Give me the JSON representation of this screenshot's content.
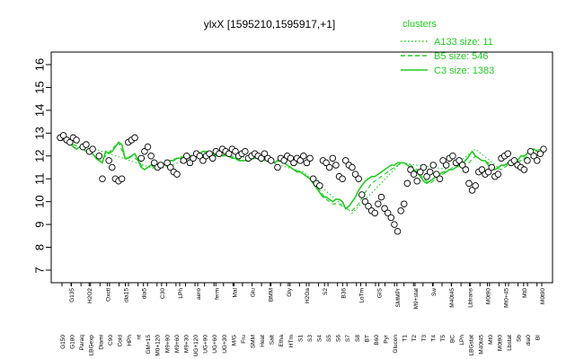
{
  "chart_data": {
    "type": "line",
    "title": "ylxX [1595210,1595917,+1]",
    "xlabel": "",
    "ylabel": "",
    "ylim": [
      7,
      16
    ],
    "yticks": [
      7,
      8,
      9,
      10,
      11,
      12,
      13,
      14,
      15,
      16
    ],
    "grid": false,
    "legend_placement": "top-right",
    "legend_title": "clusters",
    "legend": [
      {
        "label": "A133 size: 11",
        "style": "dotted",
        "color": "#22cc22"
      },
      {
        "label": "B5 size: 546",
        "style": "dashed",
        "color": "#22cc22"
      },
      {
        "label": "C3 size: 1383",
        "style": "solid",
        "color": "#22cc22"
      }
    ],
    "tick_labels_row1": [
      "G150",
      "G180",
      "Paraq",
      "LBGexp",
      "Diami",
      "C90",
      "Cold",
      "HPh",
      "nt",
      "GM+15",
      "M0+120",
      "M9+90",
      "M9+60",
      "M9+30",
      "UG+120",
      "UG+90",
      "UG+60",
      "UG+30",
      "M/G",
      "Fru",
      "SMM",
      "Heat",
      "Salt",
      "Etha",
      "HTm",
      "S1",
      "S3",
      "S4",
      "S5",
      "S6",
      "S7",
      "S8",
      "BT",
      "B60",
      "Pyr",
      "Glucon",
      "T1",
      "T2",
      "T3",
      "T4",
      "T5",
      "BC",
      "LPh",
      "LBGstat",
      "M40t45",
      "Mt0",
      "M0t90",
      "Lbstat",
      "Sb",
      "dia0",
      "BI"
    ],
    "tick_labels_row2": [
      "G135",
      "H2O2",
      "Oxctl",
      "dia15",
      "dia5",
      "C30",
      "LPh",
      "aero",
      "ferm",
      "Mal",
      "Glu",
      "BMM",
      "Gly",
      "H2Oa",
      "S2",
      "B36",
      "LoTm",
      "GIS",
      "SMMPr",
      "M9+stat",
      "Sw",
      "M40t45",
      "Lbtrans",
      "M0t90",
      "Mt0+45",
      "Mt0",
      "M0t90"
    ],
    "series": [
      {
        "style": "solid",
        "x": [
          0,
          1,
          2,
          3,
          4,
          5,
          6,
          7,
          8,
          9,
          10,
          11,
          12,
          13,
          14,
          15,
          16,
          17,
          18,
          19,
          20,
          21,
          22,
          23,
          24,
          25,
          26,
          27,
          28,
          29,
          30,
          31,
          32,
          33,
          34,
          35,
          36,
          37,
          38,
          39,
          40,
          41,
          42,
          43,
          44,
          45,
          46,
          47,
          48,
          49,
          50,
          51,
          52,
          53,
          54,
          55,
          56,
          57,
          58,
          59,
          60,
          61,
          62,
          63,
          64,
          65,
          66,
          67,
          68,
          69,
          70,
          71,
          72,
          73,
          74,
          75,
          76,
          77,
          78,
          79,
          80,
          81,
          82,
          83,
          84,
          85,
          86,
          87,
          88,
          89,
          90,
          91,
          92,
          93,
          94,
          95,
          96,
          97,
          98,
          99,
          100,
          101,
          102,
          103,
          104,
          105,
          106,
          107,
          108,
          109,
          110,
          111,
          112,
          113,
          114,
          115,
          116,
          117,
          118,
          119,
          120,
          121,
          122,
          123,
          124,
          125,
          126,
          127,
          128,
          129,
          130,
          131,
          132,
          133,
          134,
          135,
          136,
          137,
          138,
          139,
          140,
          141,
          142,
          143,
          144,
          145,
          146,
          147,
          148,
          149
        ],
        "y": [
          12.7,
          12.7,
          12.6,
          12.6,
          12.4,
          12.3,
          12.4,
          12.3,
          12.2,
          12.1,
          12.1,
          11.9,
          11.8,
          11.7,
          12.2,
          12.1,
          12.2,
          12.4,
          12.6,
          12.5,
          11.9,
          11.9,
          12.0,
          12.1,
          11.8,
          11.5,
          11.4,
          11.5,
          11.6,
          11.5,
          11.4,
          11.6,
          11.6,
          11.7,
          11.8,
          11.8,
          11.9,
          11.9,
          11.9,
          12.0,
          11.9,
          12.0,
          12.0,
          12.1,
          12.2,
          12.2,
          12.1,
          12.1,
          12.0,
          12.1,
          12.0,
          12.1,
          12.0,
          11.9,
          11.9,
          11.8,
          11.8,
          11.8,
          11.8,
          11.9,
          11.9,
          11.9,
          11.8,
          11.9,
          11.8,
          11.8,
          11.7,
          11.8,
          11.8,
          11.7,
          11.6,
          11.5,
          11.4,
          11.3,
          11.3,
          11.2,
          11.1,
          11.0,
          10.8,
          10.6,
          10.4,
          10.2,
          10.2,
          10.1,
          10.0,
          10.1,
          10.1,
          10.0,
          9.7,
          9.8,
          10.0,
          10.2,
          10.5,
          10.7,
          10.9,
          11.0,
          11.1,
          11.1,
          11.2,
          11.3,
          11.4,
          11.5,
          11.6,
          11.6,
          11.7,
          11.7,
          11.7,
          11.6,
          11.5,
          11.4,
          11.3,
          11.1,
          10.9,
          10.8,
          10.9,
          11.0,
          11.1,
          11.2,
          11.3,
          11.3,
          11.4,
          11.4,
          11.5,
          11.6,
          11.7,
          11.8,
          12.0,
          12.2,
          12.0,
          11.9,
          11.8,
          11.8,
          11.6,
          11.5,
          11.4,
          11.5,
          11.6,
          11.6,
          11.7,
          11.7,
          11.8,
          11.8,
          12.0,
          12.0,
          12.1,
          12.2,
          12.3,
          12.2,
          12.1,
          12.1
        ]
      },
      {
        "style": "dashed",
        "x": [
          0,
          2,
          4,
          6,
          8,
          10,
          12,
          14,
          16,
          18,
          20,
          22,
          24,
          26,
          28,
          30,
          32,
          34,
          36,
          38,
          40,
          42,
          44,
          46,
          48,
          50,
          52,
          54,
          56,
          58,
          60,
          62,
          64,
          66,
          68,
          70,
          72,
          74,
          76,
          78,
          80,
          82,
          84,
          86,
          88,
          90,
          92,
          94,
          96,
          98,
          100,
          102,
          104,
          106,
          108,
          110,
          112,
          114,
          116,
          118,
          120,
          122,
          124,
          126,
          128,
          130,
          132,
          134,
          136,
          138,
          140,
          142,
          144,
          146,
          148,
          149
        ],
        "y": [
          12.8,
          12.7,
          12.5,
          12.4,
          12.2,
          12.1,
          11.8,
          12.0,
          12.3,
          12.6,
          11.9,
          12.0,
          11.8,
          11.4,
          11.6,
          11.4,
          11.6,
          11.8,
          11.9,
          12.0,
          12.0,
          12.1,
          12.2,
          12.1,
          12.0,
          12.0,
          12.0,
          11.9,
          11.8,
          11.8,
          11.9,
          11.9,
          11.8,
          11.7,
          11.8,
          11.6,
          11.4,
          11.3,
          11.1,
          10.9,
          10.5,
          10.1,
          9.9,
          9.9,
          9.7,
          9.6,
          9.9,
          10.4,
          10.8,
          11.0,
          11.2,
          11.4,
          11.6,
          11.7,
          11.6,
          11.4,
          11.0,
          10.8,
          11.0,
          11.2,
          11.4,
          11.5,
          11.6,
          11.7,
          12.0,
          11.8,
          11.7,
          11.5,
          11.4,
          11.6,
          11.7,
          11.8,
          12.0,
          12.2,
          12.3,
          12.1
        ]
      },
      {
        "style": "dotted",
        "x": [
          0,
          15,
          30,
          45,
          60,
          75,
          90,
          105,
          120,
          128,
          135,
          149
        ],
        "y": [
          12.8,
          12.1,
          11.4,
          12.1,
          11.9,
          11.3,
          9.5,
          11.7,
          11.4,
          12.3,
          11.5,
          12.1
        ]
      }
    ],
    "points": [
      {
        "x": 0,
        "y": 12.8
      },
      {
        "x": 1,
        "y": 12.9
      },
      {
        "x": 2,
        "y": 12.7
      },
      {
        "x": 3,
        "y": 12.6
      },
      {
        "x": 4,
        "y": 12.8
      },
      {
        "x": 5,
        "y": 12.7
      },
      {
        "x": 7,
        "y": 12.4
      },
      {
        "x": 8,
        "y": 12.5
      },
      {
        "x": 9,
        "y": 12.2
      },
      {
        "x": 10,
        "y": 12.3
      },
      {
        "x": 12,
        "y": 12.0
      },
      {
        "x": 13,
        "y": 11.0
      },
      {
        "x": 15,
        "y": 11.8
      },
      {
        "x": 16,
        "y": 11.5
      },
      {
        "x": 17,
        "y": 11.0
      },
      {
        "x": 18,
        "y": 10.9
      },
      {
        "x": 19,
        "y": 11.0
      },
      {
        "x": 21,
        "y": 12.6
      },
      {
        "x": 22,
        "y": 12.7
      },
      {
        "x": 23,
        "y": 12.8
      },
      {
        "x": 25,
        "y": 11.9
      },
      {
        "x": 26,
        "y": 12.2
      },
      {
        "x": 27,
        "y": 12.4
      },
      {
        "x": 28,
        "y": 12.0
      },
      {
        "x": 29,
        "y": 11.7
      },
      {
        "x": 30,
        "y": 11.5
      },
      {
        "x": 31,
        "y": 11.6
      },
      {
        "x": 33,
        "y": 11.7
      },
      {
        "x": 34,
        "y": 11.5
      },
      {
        "x": 35,
        "y": 11.3
      },
      {
        "x": 36,
        "y": 11.2
      },
      {
        "x": 38,
        "y": 11.8
      },
      {
        "x": 39,
        "y": 12.0
      },
      {
        "x": 40,
        "y": 11.7
      },
      {
        "x": 41,
        "y": 11.9
      },
      {
        "x": 42,
        "y": 12.1
      },
      {
        "x": 43,
        "y": 12.0
      },
      {
        "x": 44,
        "y": 11.8
      },
      {
        "x": 45,
        "y": 12.0
      },
      {
        "x": 46,
        "y": 12.1
      },
      {
        "x": 47,
        "y": 11.9
      },
      {
        "x": 48,
        "y": 12.2
      },
      {
        "x": 49,
        "y": 12.1
      },
      {
        "x": 50,
        "y": 12.3
      },
      {
        "x": 51,
        "y": 12.2
      },
      {
        "x": 52,
        "y": 12.1
      },
      {
        "x": 53,
        "y": 12.3
      },
      {
        "x": 54,
        "y": 12.2
      },
      {
        "x": 55,
        "y": 12.0
      },
      {
        "x": 56,
        "y": 12.1
      },
      {
        "x": 57,
        "y": 12.2
      },
      {
        "x": 58,
        "y": 11.9
      },
      {
        "x": 59,
        "y": 12.0
      },
      {
        "x": 60,
        "y": 12.1
      },
      {
        "x": 61,
        "y": 12.0
      },
      {
        "x": 62,
        "y": 11.9
      },
      {
        "x": 63,
        "y": 12.1
      },
      {
        "x": 64,
        "y": 11.9
      },
      {
        "x": 65,
        "y": 11.8
      },
      {
        "x": 67,
        "y": 11.5
      },
      {
        "x": 68,
        "y": 11.9
      },
      {
        "x": 69,
        "y": 11.8
      },
      {
        "x": 70,
        "y": 12.0
      },
      {
        "x": 71,
        "y": 11.9
      },
      {
        "x": 72,
        "y": 11.7
      },
      {
        "x": 73,
        "y": 11.9
      },
      {
        "x": 74,
        "y": 11.8
      },
      {
        "x": 75,
        "y": 12.0
      },
      {
        "x": 76,
        "y": 11.7
      },
      {
        "x": 77,
        "y": 11.9
      },
      {
        "x": 78,
        "y": 11.0
      },
      {
        "x": 79,
        "y": 10.8
      },
      {
        "x": 80,
        "y": 10.7
      },
      {
        "x": 81,
        "y": 11.8
      },
      {
        "x": 82,
        "y": 11.7
      },
      {
        "x": 83,
        "y": 11.5
      },
      {
        "x": 84,
        "y": 11.9
      },
      {
        "x": 85,
        "y": 11.6
      },
      {
        "x": 86,
        "y": 11.1
      },
      {
        "x": 87,
        "y": 11.0
      },
      {
        "x": 88,
        "y": 11.8
      },
      {
        "x": 89,
        "y": 11.6
      },
      {
        "x": 90,
        "y": 11.5
      },
      {
        "x": 91,
        "y": 11.2
      },
      {
        "x": 92,
        "y": 11.0
      },
      {
        "x": 93,
        "y": 10.3
      },
      {
        "x": 94,
        "y": 10.0
      },
      {
        "x": 95,
        "y": 9.8
      },
      {
        "x": 96,
        "y": 9.6
      },
      {
        "x": 97,
        "y": 9.5
      },
      {
        "x": 98,
        "y": 9.9
      },
      {
        "x": 99,
        "y": 10.2
      },
      {
        "x": 100,
        "y": 9.7
      },
      {
        "x": 101,
        "y": 9.5
      },
      {
        "x": 102,
        "y": 9.3
      },
      {
        "x": 103,
        "y": 9.0
      },
      {
        "x": 104,
        "y": 8.7
      },
      {
        "x": 105,
        "y": 9.6
      },
      {
        "x": 106,
        "y": 9.9
      },
      {
        "x": 107,
        "y": 10.8
      },
      {
        "x": 108,
        "y": 11.4
      },
      {
        "x": 109,
        "y": 11.2
      },
      {
        "x": 110,
        "y": 10.9
      },
      {
        "x": 111,
        "y": 11.3
      },
      {
        "x": 112,
        "y": 11.5
      },
      {
        "x": 113,
        "y": 11.1
      },
      {
        "x": 114,
        "y": 11.3
      },
      {
        "x": 115,
        "y": 11.6
      },
      {
        "x": 116,
        "y": 11.2
      },
      {
        "x": 117,
        "y": 11.0
      },
      {
        "x": 118,
        "y": 11.8
      },
      {
        "x": 119,
        "y": 11.6
      },
      {
        "x": 120,
        "y": 11.9
      },
      {
        "x": 121,
        "y": 12.0
      },
      {
        "x": 122,
        "y": 11.7
      },
      {
        "x": 123,
        "y": 11.8
      },
      {
        "x": 124,
        "y": 11.6
      },
      {
        "x": 125,
        "y": 11.4
      },
      {
        "x": 126,
        "y": 10.8
      },
      {
        "x": 127,
        "y": 10.5
      },
      {
        "x": 128,
        "y": 10.7
      },
      {
        "x": 129,
        "y": 11.3
      },
      {
        "x": 130,
        "y": 11.4
      },
      {
        "x": 131,
        "y": 11.2
      },
      {
        "x": 132,
        "y": 11.3
      },
      {
        "x": 133,
        "y": 11.5
      },
      {
        "x": 134,
        "y": 11.1
      },
      {
        "x": 135,
        "y": 11.2
      },
      {
        "x": 136,
        "y": 11.9
      },
      {
        "x": 137,
        "y": 12.0
      },
      {
        "x": 138,
        "y": 12.1
      },
      {
        "x": 139,
        "y": 11.7
      },
      {
        "x": 140,
        "y": 11.8
      },
      {
        "x": 141,
        "y": 11.6
      },
      {
        "x": 142,
        "y": 11.5
      },
      {
        "x": 143,
        "y": 11.4
      },
      {
        "x": 144,
        "y": 11.8
      },
      {
        "x": 145,
        "y": 12.2
      },
      {
        "x": 146,
        "y": 12.0
      },
      {
        "x": 147,
        "y": 11.8
      },
      {
        "x": 148,
        "y": 12.1
      },
      {
        "x": 149,
        "y": 12.3
      }
    ],
    "x_count": 150,
    "line_color": "#22cc22",
    "point_color": "#000000",
    "point_fill": "#ffffff"
  }
}
